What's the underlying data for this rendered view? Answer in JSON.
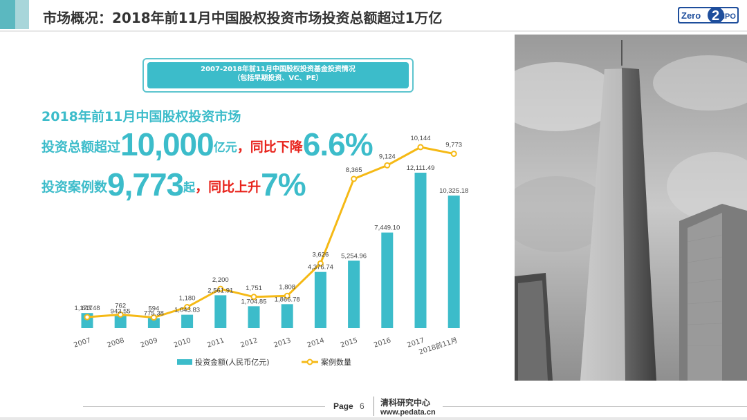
{
  "header": {
    "title": "市场概况：2018年前11月中国股权投资市场投资总额超过1万亿",
    "logo_text_1": "Zero",
    "logo_text_2": "2",
    "logo_text_3": "IPO"
  },
  "subtitle": {
    "line1": "2007-2018年前11月中国股权投资基金投资情况",
    "line2": "（包括早期投资、VC、PE）"
  },
  "highlights": {
    "line1": "2018年前11月中国股权投资市场",
    "line2_a": "投资总额超过",
    "line2_big": "10,000",
    "line2_b": "亿元",
    "line2_c": "，",
    "line2_red": "同比下降",
    "line2_big2": "6.6%",
    "line3_a": "投资案例数",
    "line3_big": "9,773",
    "line3_b": "起",
    "line3_c": "，",
    "line3_red": "同比上升",
    "line3_big2": "7%"
  },
  "chart_data": {
    "type": "bar",
    "categories": [
      "2007",
      "2008",
      "2009",
      "2010",
      "2011",
      "2012",
      "2013",
      "2014",
      "2015",
      "2016",
      "2017",
      "2018前11月"
    ],
    "series": [
      {
        "name": "投资金额(人民币亿元)",
        "type": "bar",
        "values": [
          1173.48,
          943.55,
          775.38,
          1043.83,
          2561.91,
          1704.85,
          1866.78,
          4376.74,
          5254.96,
          7449.1,
          12111.49,
          10325.18
        ],
        "labels": [
          "1,173.48",
          "943.55",
          "775.38",
          "1,043.83",
          "2,561.91",
          "1,704.85",
          "1,866.78",
          "4,376.74",
          "5,254.96",
          "7,449.10",
          "12,111.49",
          "10,325.18"
        ]
      },
      {
        "name": "案例数量",
        "type": "line",
        "values": [
          617,
          762,
          594,
          1180,
          2200,
          1751,
          1808,
          3626,
          8365,
          9124,
          10144,
          9773
        ],
        "labels": [
          "617",
          "762",
          "594",
          "1,180",
          "2,200",
          "1,751",
          "1,808",
          "3,626",
          "8,365",
          "9,124",
          "10,144",
          "9,773"
        ]
      }
    ],
    "legend_position": "bottom",
    "colors": {
      "bar": "#3cbcca",
      "line": "#f5b915"
    }
  },
  "footer": {
    "page_label": "Page",
    "page_number": "6",
    "org": "清科研究中心",
    "url": "www.pedata.cn"
  }
}
